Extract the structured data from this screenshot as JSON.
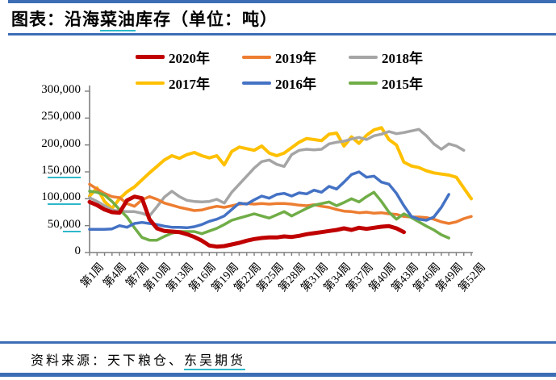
{
  "page": {
    "title_prefix": "图表：沿海",
    "title_underlined": "菜油",
    "title_suffix": "库存（单位：吨）",
    "source_prefix": "资料来源：天下粮仓、",
    "source_link": "东吴期货"
  },
  "colors": {
    "rule_blue": "#3d6eb5",
    "underline_teal": "#2eb8c9",
    "axis_gray": "#7f7f7f"
  },
  "chart_data": {
    "type": "line",
    "title": "沿海菜油库存（单位：吨）",
    "xlabel": "周",
    "ylabel": "",
    "ylim": [
      0,
      300000
    ],
    "grid": false,
    "legend_position": "top",
    "x_weeks": 52,
    "x_tick_step": 3,
    "x_tick_labels": [
      "第1周",
      "第4周",
      "第7周",
      "第10周",
      "第13周",
      "第16周",
      "第19周",
      "第22周",
      "第25周",
      "第28周",
      "第31周",
      "第34周",
      "第37周",
      "第40周",
      "第43周",
      "第46周",
      "第49周",
      "第52周"
    ],
    "y_ticks": [
      {
        "value": 0,
        "pre": "0",
        "und": ""
      },
      {
        "value": 50000,
        "pre": "50,",
        "und": "000"
      },
      {
        "value": 100000,
        "pre": "1",
        "und": "00,000"
      },
      {
        "value": 150000,
        "pre": "1",
        "und": "50,000"
      },
      {
        "value": 200000,
        "pre": "200,000",
        "und": ""
      },
      {
        "value": 250000,
        "pre": "250,000",
        "und": ""
      },
      {
        "value": 300000,
        "pre": "300,000",
        "und": ""
      }
    ],
    "series": [
      {
        "name": "2020年",
        "color": "#c00000",
        "width": 5,
        "start_week": 1,
        "values": [
          94000,
          88000,
          80000,
          75000,
          74000,
          97000,
          104000,
          101000,
          62000,
          45000,
          40000,
          39000,
          38000,
          34000,
          29000,
          22000,
          13000,
          11000,
          12000,
          15000,
          18000,
          22000,
          25000,
          27000,
          28000,
          28000,
          30000,
          29000,
          31000,
          34000,
          36000,
          38000,
          40000,
          42000,
          45000,
          42000,
          46000,
          44000,
          46000,
          48000,
          49000,
          45000,
          38000
        ]
      },
      {
        "name": "2019年",
        "color": "#ed7d31",
        "width": 3.5,
        "start_week": 1,
        "values": [
          127000,
          118000,
          110000,
          104000,
          102000,
          91000,
          86000,
          98000,
          104000,
          99000,
          92000,
          88000,
          84000,
          81000,
          78000,
          79000,
          83000,
          86000,
          84000,
          87000,
          90000,
          91000,
          90000,
          91000,
          90000,
          91000,
          91000,
          90000,
          88000,
          87000,
          89000,
          86000,
          84000,
          80000,
          77000,
          76000,
          74000,
          75000,
          73000,
          74000,
          72000,
          71000,
          67000,
          66000,
          66000,
          65000,
          62000,
          57000,
          54000,
          57000,
          63000,
          67000
        ]
      },
      {
        "name": "2018年",
        "color": "#a5a5a5",
        "width": 3.5,
        "start_week": 1,
        "values": [
          102000,
          95000,
          87000,
          79000,
          77000,
          76000,
          76000,
          73000,
          68000,
          85000,
          103000,
          114000,
          104000,
          97000,
          95000,
          94000,
          95000,
          99000,
          92000,
          112000,
          127000,
          142000,
          157000,
          169000,
          172000,
          164000,
          160000,
          182000,
          190000,
          192000,
          191000,
          192000,
          202000,
          205000,
          207000,
          211000,
          214000,
          210000,
          217000,
          220000,
          225000,
          221000,
          223000,
          226000,
          229000,
          217000,
          202000,
          192000,
          202000,
          198000,
          190000
        ]
      },
      {
        "name": "2017年",
        "color": "#ffc000",
        "width": 4,
        "start_week": 1,
        "values": [
          105000,
          120000,
          95000,
          82000,
          100000,
          113000,
          122000,
          135000,
          148000,
          160000,
          172000,
          180000,
          175000,
          182000,
          186000,
          180000,
          176000,
          180000,
          163000,
          188000,
          196000,
          193000,
          190000,
          198000,
          185000,
          180000,
          185000,
          195000,
          205000,
          212000,
          210000,
          208000,
          220000,
          222000,
          198000,
          215000,
          203000,
          218000,
          228000,
          232000,
          210000,
          200000,
          168000,
          161000,
          158000,
          152000,
          148000,
          146000,
          144000,
          140000,
          120000,
          100000
        ]
      },
      {
        "name": "2016年",
        "color": "#4472c4",
        "width": 3.5,
        "start_week": 1,
        "values": [
          43000,
          43000,
          43000,
          44000,
          50000,
          47000,
          54000,
          56000,
          54000,
          52000,
          49000,
          47000,
          47000,
          46000,
          48000,
          52000,
          58000,
          62000,
          68000,
          80000,
          92000,
          90000,
          98000,
          105000,
          101000,
          108000,
          110000,
          105000,
          111000,
          109000,
          116000,
          112000,
          123000,
          118000,
          131000,
          145000,
          150000,
          140000,
          142000,
          131000,
          127000,
          110000,
          87000,
          67000,
          62000,
          60000,
          66000,
          84000,
          108000
        ]
      },
      {
        "name": "2015年",
        "color": "#70ad47",
        "width": 3.5,
        "start_week": 1,
        "values": [
          114000,
          112000,
          107000,
          95000,
          80000,
          66000,
          46000,
          28000,
          23000,
          23000,
          30000,
          36000,
          39000,
          39000,
          39000,
          35000,
          40000,
          45000,
          52000,
          60000,
          64000,
          68000,
          72000,
          68000,
          64000,
          70000,
          76000,
          68000,
          75000,
          82000,
          88000,
          91000,
          94000,
          87000,
          93000,
          100000,
          94000,
          104000,
          112000,
          95000,
          75000,
          62000,
          72000,
          65000,
          57000,
          49000,
          42000,
          33000,
          27000
        ]
      }
    ]
  }
}
